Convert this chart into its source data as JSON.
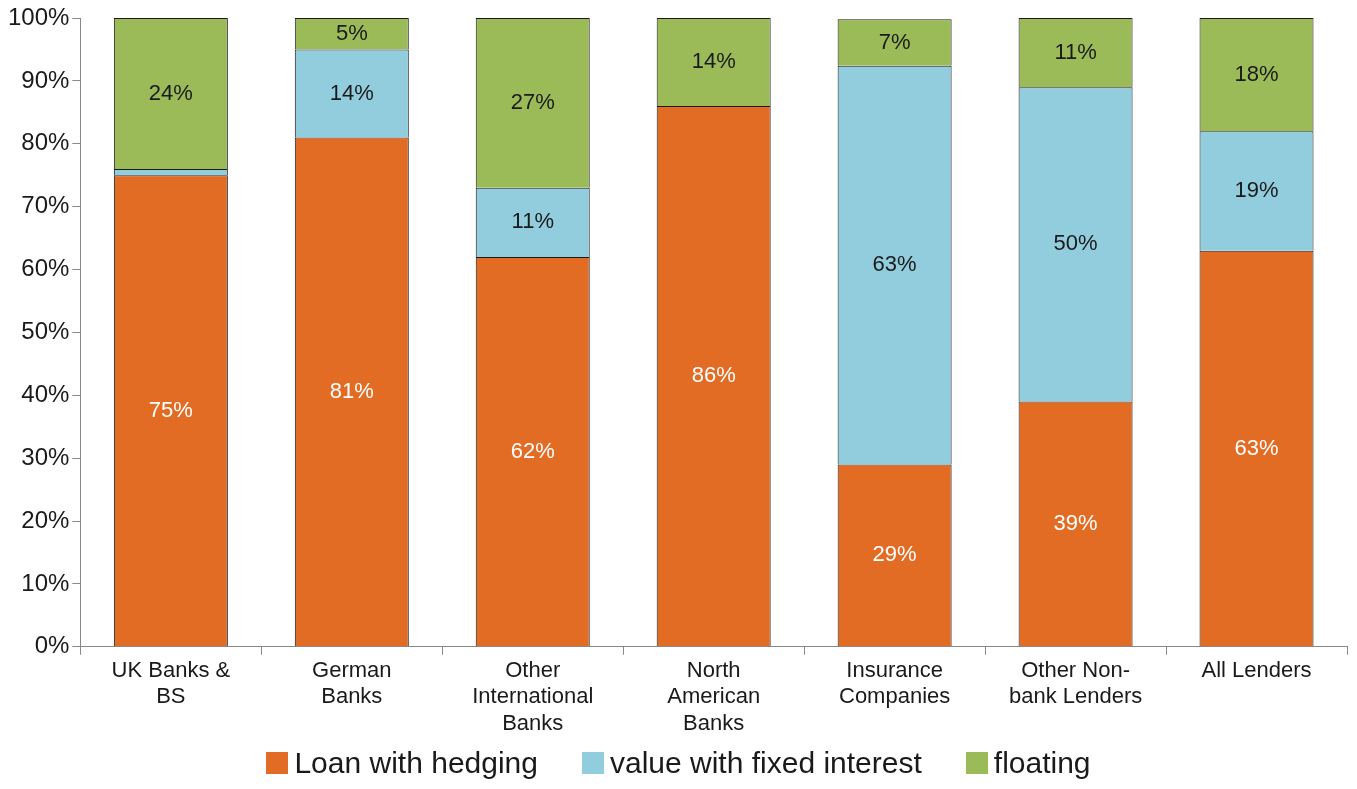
{
  "chart_data": {
    "type": "bar",
    "stacked": true,
    "categories": [
      "UK Banks & BS",
      "German Banks",
      "Other International Banks",
      "North American Banks",
      "Insurance Companies",
      "Other Non-bank Lenders",
      "All Lenders"
    ],
    "series": [
      {
        "name": "Loan with hedging",
        "color": "#e36c25",
        "values": [
          75,
          81,
          62,
          86,
          29,
          39,
          63
        ],
        "value_labels": [
          "75%",
          "81%",
          "62%",
          "86%",
          "29%",
          "39%",
          "63%"
        ]
      },
      {
        "name": "value with fixed interest",
        "color": "#92cddd",
        "values": [
          1,
          14,
          11,
          0,
          63.4,
          50,
          19
        ],
        "value_labels": [
          null,
          "14%",
          "11%",
          null,
          "63%",
          "50%",
          "19%"
        ]
      },
      {
        "name": "floating",
        "color": "#9bbb59",
        "values": [
          24,
          5,
          27,
          14,
          7.4,
          11,
          18
        ],
        "value_labels": [
          "24%",
          "5%",
          "27%",
          "14%",
          "7%",
          "11%",
          "18%"
        ]
      }
    ],
    "ylim": [
      0,
      100
    ],
    "yticks": [
      {
        "value": 0,
        "label": "0%"
      },
      {
        "value": 10,
        "label": "10%"
      },
      {
        "value": 20,
        "label": "20%"
      },
      {
        "value": 30,
        "label": "30%"
      },
      {
        "value": 40,
        "label": "40%"
      },
      {
        "value": 50,
        "label": "50%"
      },
      {
        "value": 60,
        "label": "60%"
      },
      {
        "value": 70,
        "label": "70%"
      },
      {
        "value": 80,
        "label": "80%"
      },
      {
        "value": 90,
        "label": "90%"
      },
      {
        "value": 100,
        "label": "100%"
      }
    ],
    "grid": false,
    "legend": "bottom"
  }
}
